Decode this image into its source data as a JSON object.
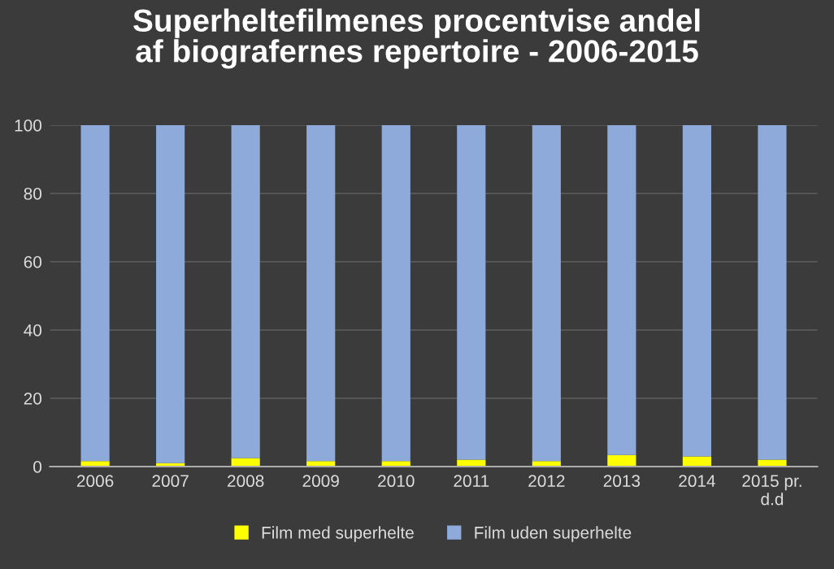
{
  "chart_data": {
    "type": "bar",
    "stacked": true,
    "title": "Superheltefilmenes procentvise andel\naf biografernes repertoire - 2006-2015",
    "categories": [
      "2006",
      "2007",
      "2008",
      "2009",
      "2010",
      "2011",
      "2012",
      "2013",
      "2014",
      "2015 pr.\nd.d"
    ],
    "series": [
      {
        "name": "Film med superhelte",
        "color": "#ffff00",
        "values": [
          1.6,
          1.0,
          2.5,
          1.6,
          1.6,
          2.0,
          1.6,
          3.4,
          3.0,
          2.0
        ]
      },
      {
        "name": "Film uden superhelte",
        "color": "#8eaadb",
        "values": [
          98.4,
          99.0,
          97.5,
          98.4,
          98.4,
          98.0,
          98.4,
          96.6,
          97.0,
          98.0
        ]
      }
    ],
    "ylim": [
      0,
      100
    ],
    "yticks": [
      0,
      20,
      40,
      60,
      80,
      100
    ],
    "grid": "y",
    "legend": "bottom"
  }
}
